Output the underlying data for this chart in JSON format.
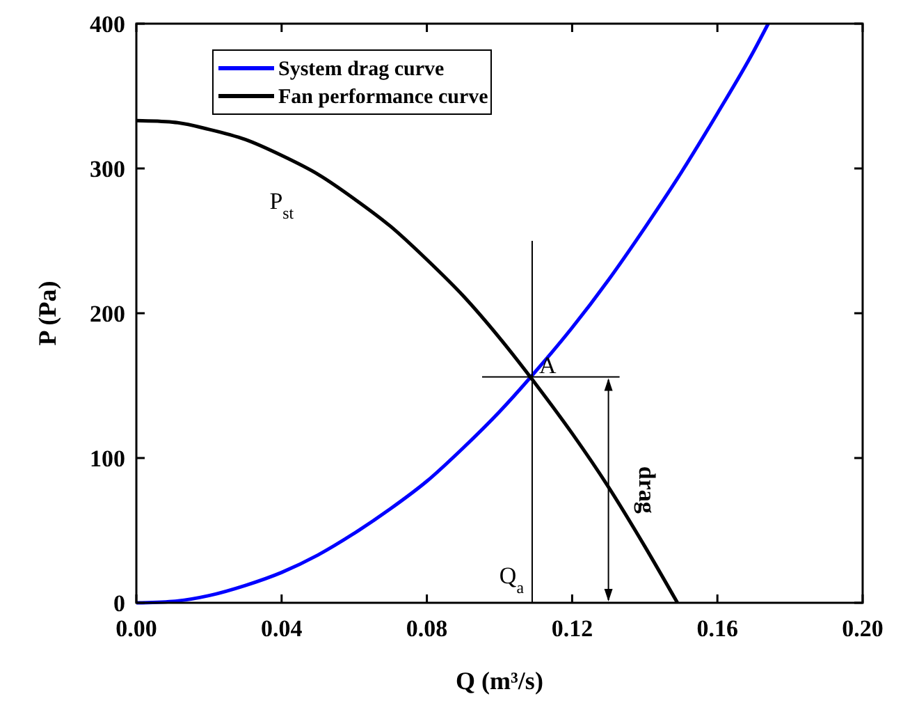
{
  "chart_data": {
    "type": "line",
    "xlabel": "Q (m³/s)",
    "ylabel": "P (Pa)",
    "xlim": [
      0,
      0.2
    ],
    "xticks": [
      {
        "value": 0,
        "label": "0.00"
      },
      {
        "value": 0.04,
        "label": "0.04"
      },
      {
        "value": 0.08,
        "label": "0.08"
      },
      {
        "value": 0.12,
        "label": "0.12"
      },
      {
        "value": 0.16,
        "label": "0.16"
      },
      {
        "value": 0.2,
        "label": "0.20"
      }
    ],
    "ylim": [
      0,
      400
    ],
    "yticks": [
      0,
      100,
      200,
      300,
      400
    ],
    "grid": false,
    "legend": "top left",
    "marker": "none",
    "line_style": "solid",
    "series": [
      {
        "name": "System drag curve",
        "color": "#0000ff",
        "x": [
          0,
          0.01,
          0.02,
          0.03,
          0.04,
          0.05,
          0.06,
          0.07,
          0.08,
          0.09,
          0.1,
          0.11,
          0.12,
          0.13,
          0.14,
          0.15,
          0.16,
          0.17,
          0.174
        ],
        "values": [
          0,
          1,
          5,
          12,
          21,
          33,
          48,
          65,
          84,
          107,
          132,
          160,
          190,
          223,
          259,
          297,
          338,
          381,
          400
        ]
      },
      {
        "name": "Fan performance curve",
        "color": "#000000",
        "x": [
          0,
          0.01,
          0.02,
          0.03,
          0.04,
          0.05,
          0.06,
          0.07,
          0.08,
          0.09,
          0.1,
          0.11,
          0.12,
          0.13,
          0.14,
          0.149
        ],
        "values": [
          333,
          332,
          327,
          320,
          309,
          296,
          279,
          260,
          237,
          212,
          183,
          151,
          117,
          80,
          39,
          0
        ]
      }
    ],
    "annotations": [
      "P$_{st}$",
      {
        "text": "A",
        "x": 0.109,
        "y": 156
      },
      "Q$_{a}$",
      {
        "text": "drag",
        "x": 0.13,
        "y": 78
      }
    ]
  }
}
